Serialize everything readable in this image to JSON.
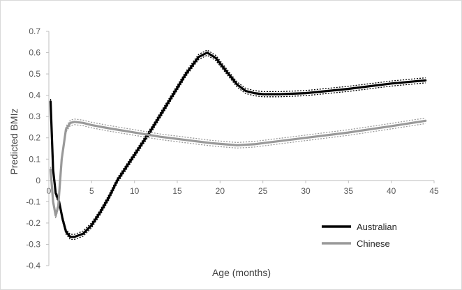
{
  "chart_data": {
    "type": "line",
    "title": "",
    "xlabel": "Age (months)",
    "ylabel": "Predicted BMIz",
    "xlim": [
      0,
      45
    ],
    "ylim": [
      -0.4,
      0.7
    ],
    "x_ticks": [
      "0",
      "5",
      "10",
      "15",
      "20",
      "25",
      "30",
      "35",
      "40",
      "45"
    ],
    "y_ticks": [
      "-0.4",
      "-0.3",
      "-0.2",
      "-0.1",
      "0",
      "0.1",
      "0.2",
      "0.3",
      "0.4",
      "0.5",
      "0.6",
      "0.7"
    ],
    "grid": false,
    "legend_position": "bottom-right",
    "series": [
      {
        "name": "Australian",
        "color": "#000000",
        "ci_band": 0.012,
        "x": [
          0.2,
          0.5,
          0.8,
          1.2,
          1.6,
          2.0,
          2.5,
          3.0,
          4.0,
          5.0,
          6.0,
          7.0,
          8.0,
          10.0,
          12.0,
          14.0,
          16.0,
          17.5,
          18.5,
          19.5,
          21.0,
          22.0,
          23.0,
          24.0,
          25.0,
          27.0,
          30.0,
          35.0,
          40.0,
          44.0
        ],
        "y": [
          0.37,
          0.05,
          -0.06,
          -0.1,
          -0.18,
          -0.24,
          -0.265,
          -0.265,
          -0.25,
          -0.21,
          -0.15,
          -0.08,
          0.0,
          0.12,
          0.24,
          0.37,
          0.5,
          0.58,
          0.6,
          0.575,
          0.5,
          0.45,
          0.42,
          0.41,
          0.405,
          0.405,
          0.41,
          0.43,
          0.455,
          0.47
        ]
      },
      {
        "name": "Chinese",
        "color": "#999999",
        "ci_band": 0.013,
        "x": [
          0.2,
          0.5,
          0.8,
          1.1,
          1.5,
          2.0,
          2.5,
          3.0,
          4.0,
          5.0,
          7.0,
          10.0,
          13.0,
          16.0,
          19.0,
          22.0,
          24.0,
          26.0,
          30.0,
          35.0,
          40.0,
          44.0
        ],
        "y": [
          0.05,
          -0.1,
          -0.165,
          -0.12,
          0.1,
          0.24,
          0.27,
          0.275,
          0.27,
          0.26,
          0.245,
          0.225,
          0.205,
          0.19,
          0.175,
          0.165,
          0.17,
          0.18,
          0.2,
          0.225,
          0.255,
          0.28
        ]
      }
    ]
  }
}
